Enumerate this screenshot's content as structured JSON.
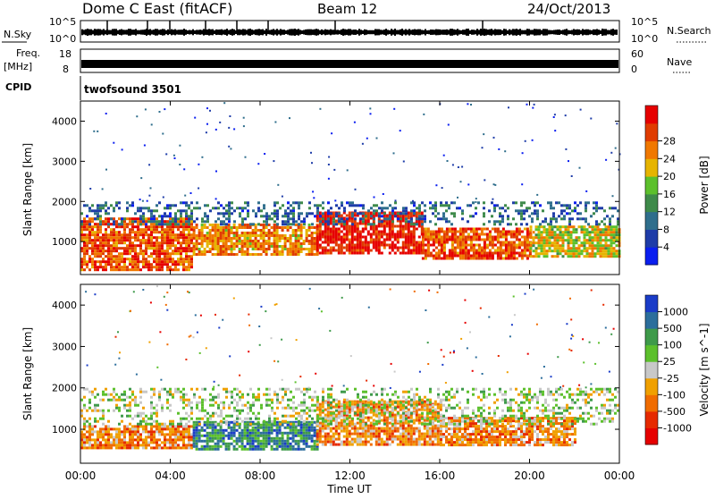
{
  "header": {
    "station": "Dome C East (fitACF)",
    "beam": "Beam 12",
    "date": "24/Oct/2013"
  },
  "housekeeping": {
    "nsky_label": "N.Sky",
    "nsky_ticks": [
      "10^5",
      "10^0"
    ],
    "nsearch_label": "N.Search",
    "nsearch_ticks": [
      "10^5",
      "10^0"
    ],
    "freq_label": "Freq.",
    "freq_unit": "[MHz]",
    "freq_ticks": [
      "18",
      "8"
    ],
    "nave_label": "Nave",
    "nave_ticks": [
      "60",
      "0"
    ],
    "cpid_label": "CPID",
    "cpid_value": "twofsound 3501"
  },
  "chart_data": [
    {
      "type": "heatmap",
      "name": "Power",
      "ylabel": "Slant Range [km]",
      "xlabel": "Time UT",
      "ylim": [
        180,
        4500
      ],
      "xlim": [
        0,
        24
      ],
      "yticks": [
        "1000",
        "2000",
        "3000",
        "4000"
      ],
      "xticks": [
        "00:00",
        "04:00",
        "08:00",
        "12:00",
        "16:00",
        "20:00",
        "00:00"
      ],
      "colorbar": {
        "label": "Power [dB]",
        "ticks": [
          "4",
          "8",
          "12",
          "16",
          "20",
          "24",
          "28"
        ],
        "colors": [
          "#0a1ef0",
          "#1e3ca8",
          "#2f6e8c",
          "#3e8a4a",
          "#5cc02c",
          "#e6b400",
          "#f07800",
          "#e03c00",
          "#e60000"
        ]
      },
      "bands": [
        {
          "t_start": 0.0,
          "t_end": 5.0,
          "range_km": [
            300,
            1600
          ],
          "level_db": 26
        },
        {
          "t_start": 5.0,
          "t_end": 10.5,
          "range_km": [
            700,
            1450
          ],
          "level_db": 22
        },
        {
          "t_start": 10.5,
          "t_end": 15.2,
          "range_km": [
            700,
            1750
          ],
          "level_db": 27
        },
        {
          "t_start": 15.2,
          "t_end": 20.0,
          "range_km": [
            550,
            1350
          ],
          "level_db": 24
        },
        {
          "t_start": 20.0,
          "t_end": 24.0,
          "range_km": [
            600,
            1400
          ],
          "level_db": 18
        },
        {
          "t_start": 0.0,
          "t_end": 24.0,
          "range_km": [
            1400,
            2000
          ],
          "level_db": 8
        }
      ]
    },
    {
      "type": "heatmap",
      "name": "Velocity",
      "ylabel": "Slant Range [km]",
      "xlabel": "Time UT",
      "ylim": [
        180,
        4500
      ],
      "xlim": [
        0,
        24
      ],
      "yticks": [
        "1000",
        "2000",
        "3000",
        "4000"
      ],
      "xticks": [
        "00:00",
        "04:00",
        "08:00",
        "12:00",
        "16:00",
        "20:00",
        "00:00"
      ],
      "colorbar": {
        "label": "Velocity [m s^-1]",
        "ticks": [
          "1000",
          "500",
          "100",
          "25",
          "-25",
          "-100",
          "-500",
          "-1000"
        ],
        "colors": [
          "#1a3cc8",
          "#2c6e9c",
          "#3e9a4a",
          "#5cc02c",
          "#c8c8c8",
          "#f0a000",
          "#f06c00",
          "#e62a00",
          "#e60000"
        ]
      },
      "bands": [
        {
          "t_start": 0.0,
          "t_end": 5.0,
          "range_km": [
            550,
            1100
          ],
          "velocity_ms": -80
        },
        {
          "t_start": 5.0,
          "t_end": 10.5,
          "range_km": [
            550,
            1200
          ],
          "velocity_ms": 80
        },
        {
          "t_start": 10.5,
          "t_end": 16.0,
          "range_km": [
            600,
            1700
          ],
          "velocity_ms": -300
        },
        {
          "t_start": 16.0,
          "t_end": 22.0,
          "range_km": [
            600,
            1300
          ],
          "velocity_ms": -200
        },
        {
          "t_start": 0.0,
          "t_end": 24.0,
          "range_km": [
            1100,
            2000
          ],
          "velocity_ms": 0
        }
      ]
    }
  ]
}
